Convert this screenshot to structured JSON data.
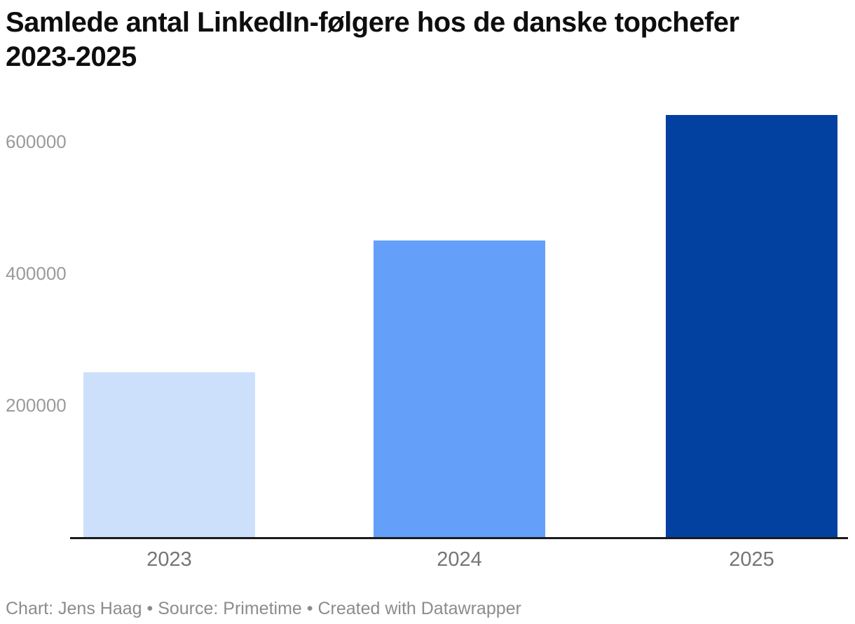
{
  "title": "Samlede antal LinkedIn-følgere hos de danske topchefer\n2023-2025",
  "footer": "Chart: Jens Haag • Source: Primetime • Created with Datawrapper",
  "chart_data": {
    "type": "bar",
    "title": "Samlede antal LinkedIn-følgere hos de danske topchefer 2023-2025",
    "categories": [
      "2023",
      "2024",
      "2025"
    ],
    "values": [
      250000,
      450000,
      640000
    ],
    "bar_colors": [
      "#cce0fb",
      "#64a0fa",
      "#0341a1"
    ],
    "yticks": [
      200000,
      400000,
      600000
    ],
    "ytick_labels": [
      "200000",
      "400000",
      "600000"
    ],
    "ylim": [
      0,
      660000
    ],
    "xlabel": "",
    "ylabel": "",
    "grid": false,
    "legend": false,
    "axis_line_color": "#1a1a1a",
    "tick_label_color": "#9a9a9a",
    "category_label_color": "#757575"
  }
}
